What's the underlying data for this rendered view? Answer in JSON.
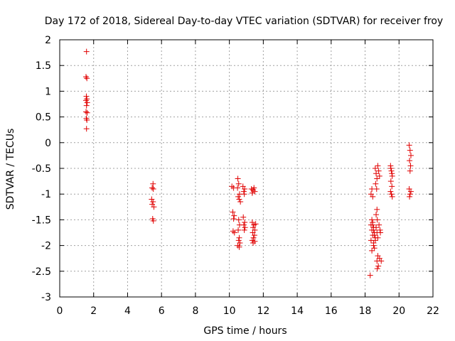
{
  "chart_data": {
    "type": "scatter",
    "title": "Day 172 of 2018, Sidereal Day-to-day VTEC variation (SDTVAR) for receiver froy",
    "xlabel": "GPS time / hours",
    "ylabel": "SDTVAR / TECUs",
    "xlim": [
      0,
      22
    ],
    "ylim": [
      -3,
      2
    ],
    "x_ticks": [
      0,
      2,
      4,
      6,
      8,
      10,
      12,
      14,
      16,
      18,
      20,
      22
    ],
    "y_ticks": [
      -3,
      -2.5,
      -2,
      -1.5,
      -1,
      -0.5,
      0,
      0.5,
      1,
      1.5,
      2
    ],
    "x_tick_labels": [
      "0",
      "2",
      "4",
      "6",
      "8",
      "10",
      "12",
      "14",
      "16",
      "18",
      "20",
      "22"
    ],
    "y_tick_labels": [
      "-3",
      "-2.5",
      "-2",
      "-1.5",
      "-1",
      "-0.5",
      "0",
      "0.5",
      "1",
      "1.5",
      "2"
    ],
    "grid": true,
    "marker": "plus",
    "color": "#e00000",
    "series": [
      {
        "name": "SDTVAR",
        "points": [
          [
            1.58,
            1.77
          ],
          [
            1.55,
            1.28
          ],
          [
            1.6,
            1.25
          ],
          [
            1.57,
            0.9
          ],
          [
            1.6,
            0.85
          ],
          [
            1.55,
            0.82
          ],
          [
            1.62,
            0.78
          ],
          [
            1.58,
            0.72
          ],
          [
            1.55,
            0.6
          ],
          [
            1.62,
            0.58
          ],
          [
            1.57,
            0.47
          ],
          [
            1.6,
            0.44
          ],
          [
            1.58,
            0.27
          ],
          [
            5.5,
            -0.8
          ],
          [
            5.45,
            -0.88
          ],
          [
            5.52,
            -0.9
          ],
          [
            5.42,
            -1.1
          ],
          [
            5.5,
            -1.15
          ],
          [
            5.45,
            -1.2
          ],
          [
            5.55,
            -1.25
          ],
          [
            5.48,
            -1.48
          ],
          [
            5.52,
            -1.52
          ],
          [
            10.15,
            -0.85
          ],
          [
            10.25,
            -0.88
          ],
          [
            10.2,
            -1.35
          ],
          [
            10.28,
            -1.42
          ],
          [
            10.25,
            -1.48
          ],
          [
            10.22,
            -1.72
          ],
          [
            10.3,
            -1.75
          ],
          [
            10.5,
            -0.7
          ],
          [
            10.55,
            -0.8
          ],
          [
            10.48,
            -0.88
          ],
          [
            10.6,
            -1.0
          ],
          [
            10.52,
            -1.05
          ],
          [
            10.58,
            -1.1
          ],
          [
            10.65,
            -1.15
          ],
          [
            10.55,
            -1.5
          ],
          [
            10.6,
            -1.6
          ],
          [
            10.52,
            -1.7
          ],
          [
            10.58,
            -1.85
          ],
          [
            10.55,
            -1.9
          ],
          [
            10.62,
            -1.95
          ],
          [
            10.5,
            -2.0
          ],
          [
            10.58,
            -2.03
          ],
          [
            10.8,
            -0.85
          ],
          [
            10.9,
            -0.9
          ],
          [
            10.85,
            -0.95
          ],
          [
            10.88,
            -1.0
          ],
          [
            10.82,
            -1.45
          ],
          [
            10.9,
            -1.55
          ],
          [
            10.85,
            -1.6
          ],
          [
            10.92,
            -1.65
          ],
          [
            10.88,
            -1.7
          ],
          [
            11.3,
            -0.9
          ],
          [
            11.4,
            -0.92
          ],
          [
            11.5,
            -0.95
          ],
          [
            11.35,
            -0.98
          ],
          [
            11.45,
            -0.88
          ],
          [
            11.35,
            -1.55
          ],
          [
            11.45,
            -1.6
          ],
          [
            11.4,
            -1.65
          ],
          [
            11.5,
            -1.7
          ],
          [
            11.38,
            -1.75
          ],
          [
            11.48,
            -1.8
          ],
          [
            11.42,
            -1.85
          ],
          [
            11.35,
            -1.9
          ],
          [
            11.5,
            -1.92
          ],
          [
            11.4,
            -1.95
          ],
          [
            11.55,
            -1.58
          ],
          [
            18.3,
            -2.58
          ],
          [
            18.35,
            -1.0
          ],
          [
            18.4,
            -0.9
          ],
          [
            18.45,
            -1.05
          ],
          [
            18.35,
            -1.6
          ],
          [
            18.4,
            -1.7
          ],
          [
            18.45,
            -1.8
          ],
          [
            18.35,
            -1.9
          ],
          [
            18.5,
            -2.0
          ],
          [
            18.4,
            -2.1
          ],
          [
            18.45,
            -1.55
          ],
          [
            18.5,
            -1.65
          ],
          [
            18.55,
            -1.75
          ],
          [
            18.6,
            -1.85
          ],
          [
            18.5,
            -1.95
          ],
          [
            18.55,
            -2.05
          ],
          [
            18.6,
            -0.5
          ],
          [
            18.65,
            -0.6
          ],
          [
            18.7,
            -0.7
          ],
          [
            18.62,
            -0.8
          ],
          [
            18.68,
            -0.9
          ],
          [
            18.7,
            -1.3
          ],
          [
            18.65,
            -1.4
          ],
          [
            18.72,
            -1.5
          ],
          [
            18.75,
            -2.2
          ],
          [
            18.7,
            -2.3
          ],
          [
            18.78,
            -2.4
          ],
          [
            18.72,
            -2.45
          ],
          [
            18.75,
            -0.45
          ],
          [
            18.8,
            -0.55
          ],
          [
            18.85,
            -0.65
          ],
          [
            18.82,
            -1.6
          ],
          [
            18.88,
            -1.7
          ],
          [
            18.9,
            -1.75
          ],
          [
            18.85,
            -2.25
          ],
          [
            18.95,
            -2.3
          ],
          [
            18.4,
            -1.5
          ],
          [
            18.45,
            -1.6
          ],
          [
            18.5,
            -1.7
          ],
          [
            18.55,
            -1.8
          ],
          [
            18.6,
            -1.9
          ],
          [
            18.65,
            -1.65
          ],
          [
            18.7,
            -1.75
          ],
          [
            18.75,
            -1.85
          ],
          [
            19.5,
            -0.45
          ],
          [
            19.55,
            -0.55
          ],
          [
            19.6,
            -0.65
          ],
          [
            19.52,
            -0.75
          ],
          [
            19.58,
            -0.85
          ],
          [
            19.5,
            -0.95
          ],
          [
            19.55,
            -1.0
          ],
          [
            19.6,
            -1.05
          ],
          [
            19.52,
            -0.5
          ],
          [
            19.58,
            -0.6
          ],
          [
            20.6,
            -0.05
          ],
          [
            20.65,
            -0.15
          ],
          [
            20.7,
            -0.25
          ],
          [
            20.62,
            -0.35
          ],
          [
            20.68,
            -0.45
          ],
          [
            20.65,
            -0.55
          ],
          [
            20.6,
            -0.9
          ],
          [
            20.7,
            -0.95
          ],
          [
            20.65,
            -1.0
          ],
          [
            20.62,
            -1.05
          ]
        ]
      }
    ]
  }
}
